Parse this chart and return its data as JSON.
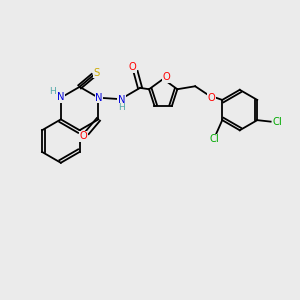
{
  "background_color": "#ebebeb",
  "figsize": [
    3.0,
    3.0
  ],
  "dpi": 100,
  "colors": {
    "C": "#000000",
    "N": "#0000dd",
    "O": "#ff0000",
    "S": "#ccaa00",
    "Cl": "#00aa00",
    "H": "#55aaaa"
  },
  "lw": 1.3,
  "fs": 7.2
}
